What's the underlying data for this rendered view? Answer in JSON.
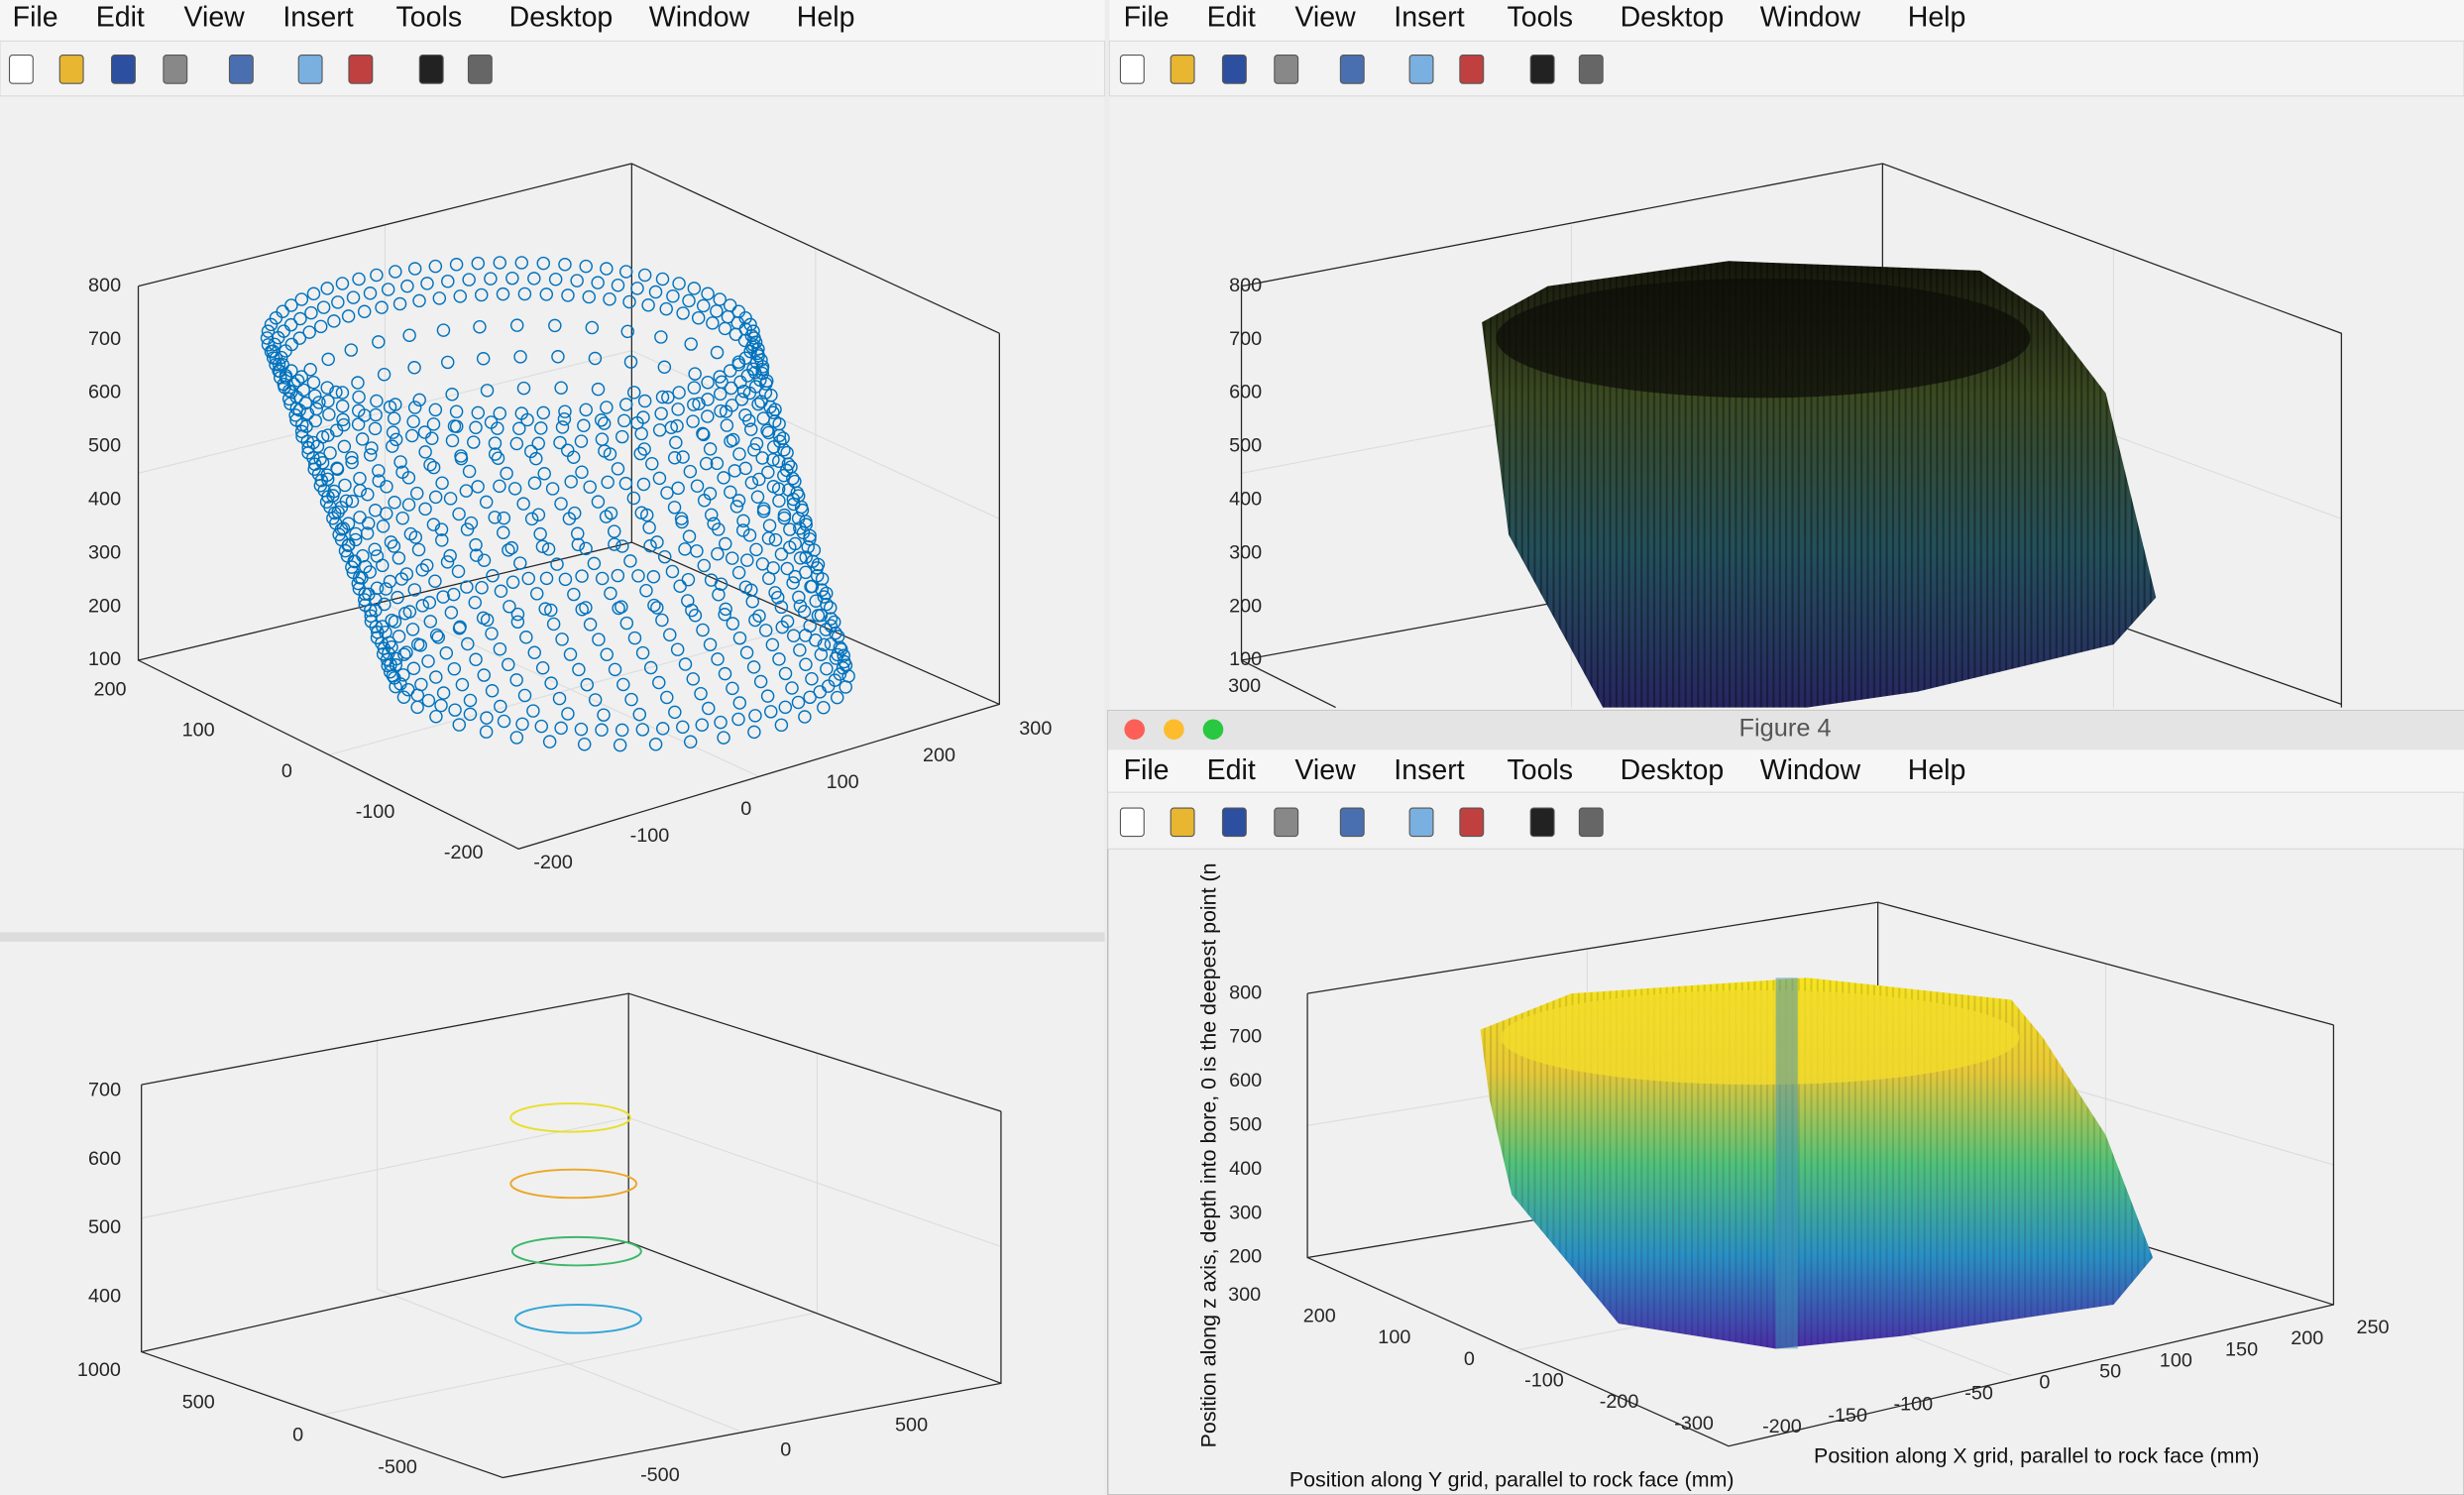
{
  "windows": [
    {
      "menu": [
        "File",
        "Edit",
        "View",
        "Insert",
        "Tools",
        "Desktop",
        "Window",
        "Help"
      ],
      "axes": {
        "z_ticks": [
          800,
          700,
          600,
          500,
          400,
          300,
          200,
          100
        ],
        "y_ticks": [
          200,
          100,
          0,
          -100,
          -200
        ],
        "x_ticks": [
          -200,
          -100,
          0,
          100,
          200,
          300
        ]
      }
    },
    {
      "menu": [
        "File",
        "Edit",
        "View",
        "Insert",
        "Tools",
        "Desktop",
        "Window",
        "Help"
      ],
      "axes": {
        "z_ticks": [
          800,
          700,
          600,
          500,
          400,
          300,
          200,
          100
        ],
        "y_ticks": [
          300
        ]
      }
    },
    {
      "axes": {
        "z_ticks": [
          700,
          600,
          500,
          400
        ],
        "y_ticks": [
          1000,
          500,
          0,
          -500
        ],
        "x_ticks": [
          -500,
          0,
          500
        ]
      }
    },
    {
      "title": "Figure 4",
      "menu": [
        "File",
        "Edit",
        "View",
        "Insert",
        "Tools",
        "Desktop",
        "Window",
        "Help"
      ],
      "axes": {
        "z_ticks": [
          800,
          700,
          600,
          500,
          400,
          300,
          200
        ],
        "y_ticks": [
          300,
          200,
          100,
          0,
          -100,
          -200,
          -300
        ],
        "x_ticks": [
          -200,
          -150,
          -100,
          -50,
          0,
          50,
          100,
          150,
          200,
          250
        ],
        "z_label": "Position along z axis, depth into bore, 0 is the deepest point (n",
        "y_label": "Position along Y grid, parallel to rock face (mm)",
        "x_label": "Position along X grid, parallel to rock face (mm)"
      }
    }
  ]
}
